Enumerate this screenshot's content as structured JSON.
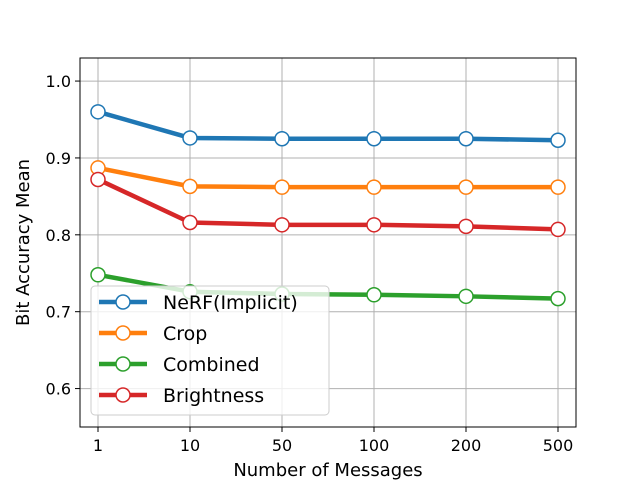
{
  "chart_data": {
    "type": "line",
    "categories": [
      "1",
      "10",
      "50",
      "100",
      "200",
      "500"
    ],
    "xlabel": "Number of Messages",
    "ylabel": "Bit Accuracy Mean",
    "ylim": [
      0.55,
      1.03
    ],
    "yticks": [
      "0.6",
      "0.7",
      "0.8",
      "0.9",
      "1.0"
    ],
    "grid": true,
    "legend_position": "lower-left",
    "series": [
      {
        "name": "NeRF(Implicit)",
        "color": "#1f77b4",
        "values": [
          0.96,
          0.926,
          0.925,
          0.925,
          0.925,
          0.923
        ]
      },
      {
        "name": "Crop",
        "color": "#ff7f0e",
        "values": [
          0.887,
          0.863,
          0.862,
          0.862,
          0.862,
          0.862
        ]
      },
      {
        "name": "Combined",
        "color": "#2ca02c",
        "values": [
          0.748,
          0.726,
          0.723,
          0.722,
          0.72,
          0.717
        ]
      },
      {
        "name": "Brightness",
        "color": "#d62728",
        "values": [
          0.872,
          0.816,
          0.813,
          0.813,
          0.811,
          0.807
        ]
      }
    ]
  }
}
